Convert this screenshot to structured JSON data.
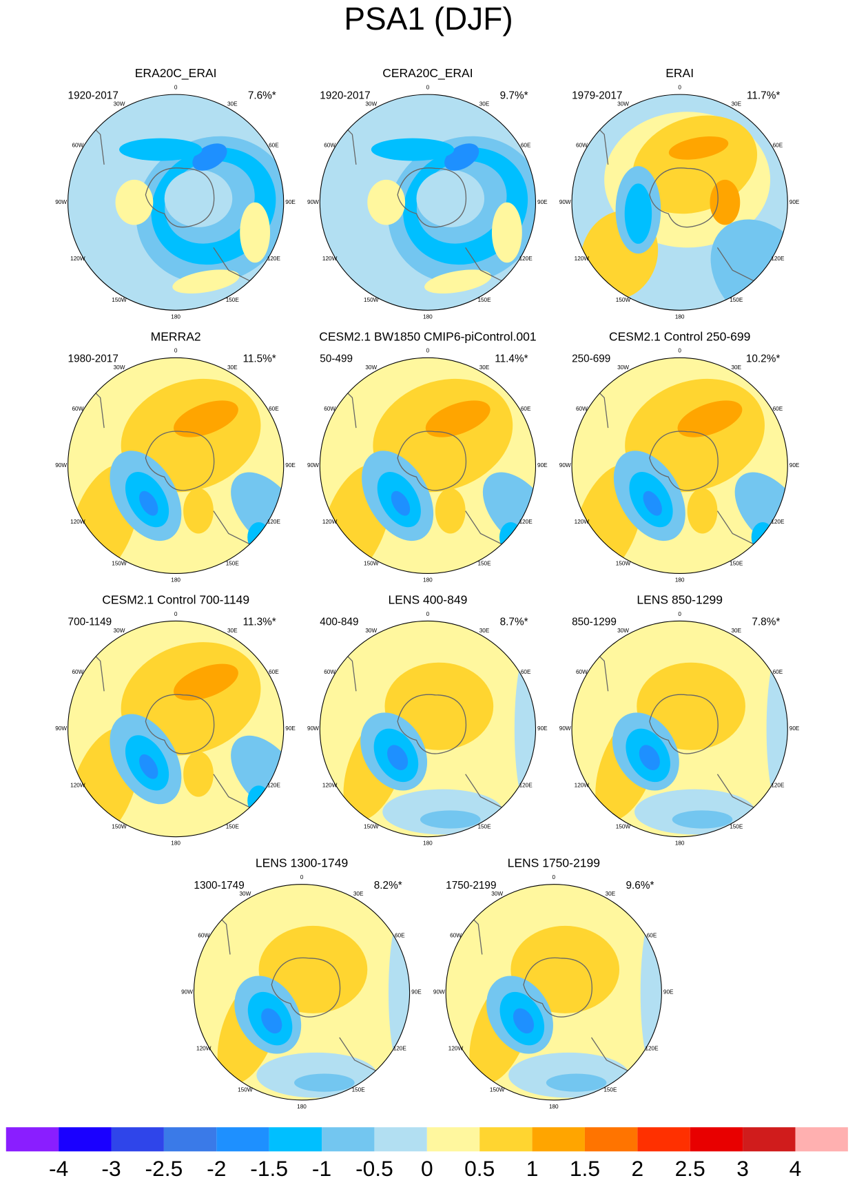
{
  "title": "PSA1 (DJF)",
  "longitude_labels": [
    "0",
    "30E",
    "60E",
    "90E",
    "120E",
    "150E",
    "180",
    "150W",
    "120W",
    "90W",
    "60W",
    "30W"
  ],
  "panels": [
    {
      "title": "ERA20C_ERAI",
      "period": "1920-2017",
      "variance": "7.6%*"
    },
    {
      "title": "CERA20C_ERAI",
      "period": "1920-2017",
      "variance": "9.7%*"
    },
    {
      "title": "ERAI",
      "period": "1979-2017",
      "variance": "11.7%*"
    },
    {
      "title": "MERRA2",
      "period": "1980-2017",
      "variance": "11.5%*"
    },
    {
      "title": "CESM2.1 BW1850 CMIP6-piControl.001",
      "period": "50-499",
      "variance": "11.4%*"
    },
    {
      "title": "CESM2.1 Control 250-699",
      "period": "250-699",
      "variance": "10.2%*"
    },
    {
      "title": "CESM2.1 Control 700-1149",
      "period": "700-1149",
      "variance": "11.3%*"
    },
    {
      "title": "LENS 400-849",
      "period": "400-849",
      "variance": "8.7%*"
    },
    {
      "title": "LENS 850-1299",
      "period": "850-1299",
      "variance": "7.8%*"
    },
    {
      "title": "LENS 1300-1749",
      "period": "1300-1749",
      "variance": "8.2%*"
    },
    {
      "title": "LENS 1750-2199",
      "period": "1750-2199",
      "variance": "9.6%*"
    }
  ],
  "colorbar": {
    "colors": [
      "#8a1eff",
      "#1a00ff",
      "#2f45ea",
      "#3a7ae8",
      "#1e90ff",
      "#00bfff",
      "#73c6f0",
      "#b2dff2",
      "#fff79e",
      "#ffd530",
      "#ffa500",
      "#ff7400",
      "#ff3000",
      "#e80000",
      "#d01c1c",
      "#ffb0b0"
    ],
    "labels": [
      -4,
      -3,
      -2.5,
      -2,
      -1.5,
      -1,
      -0.5,
      0,
      0.5,
      1,
      1.5,
      2,
      2.5,
      3,
      4
    ]
  }
}
